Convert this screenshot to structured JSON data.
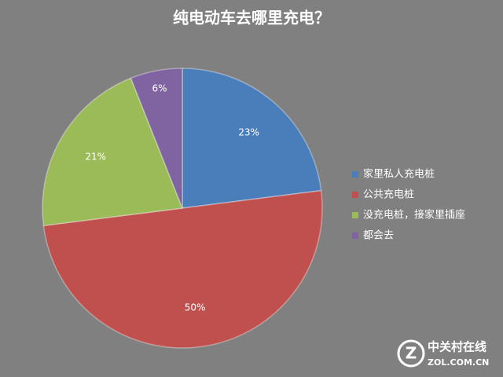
{
  "chart_data": {
    "type": "pie",
    "title": "纯电动车去哪里充电？",
    "categories": [
      "家里私人充电桩",
      "公共充电桩",
      "没充电桩，接家里插座",
      "都会去"
    ],
    "values": [
      23,
      50,
      21,
      6
    ],
    "value_labels": [
      "23%",
      "50%",
      "21%",
      "6%"
    ],
    "colors": [
      "#4a7ebb",
      "#c0504d",
      "#9bbb59",
      "#8064a2"
    ],
    "legend": "right"
  },
  "watermark": {
    "name": "中关村在线",
    "url": "ZOL.COM.CN"
  }
}
